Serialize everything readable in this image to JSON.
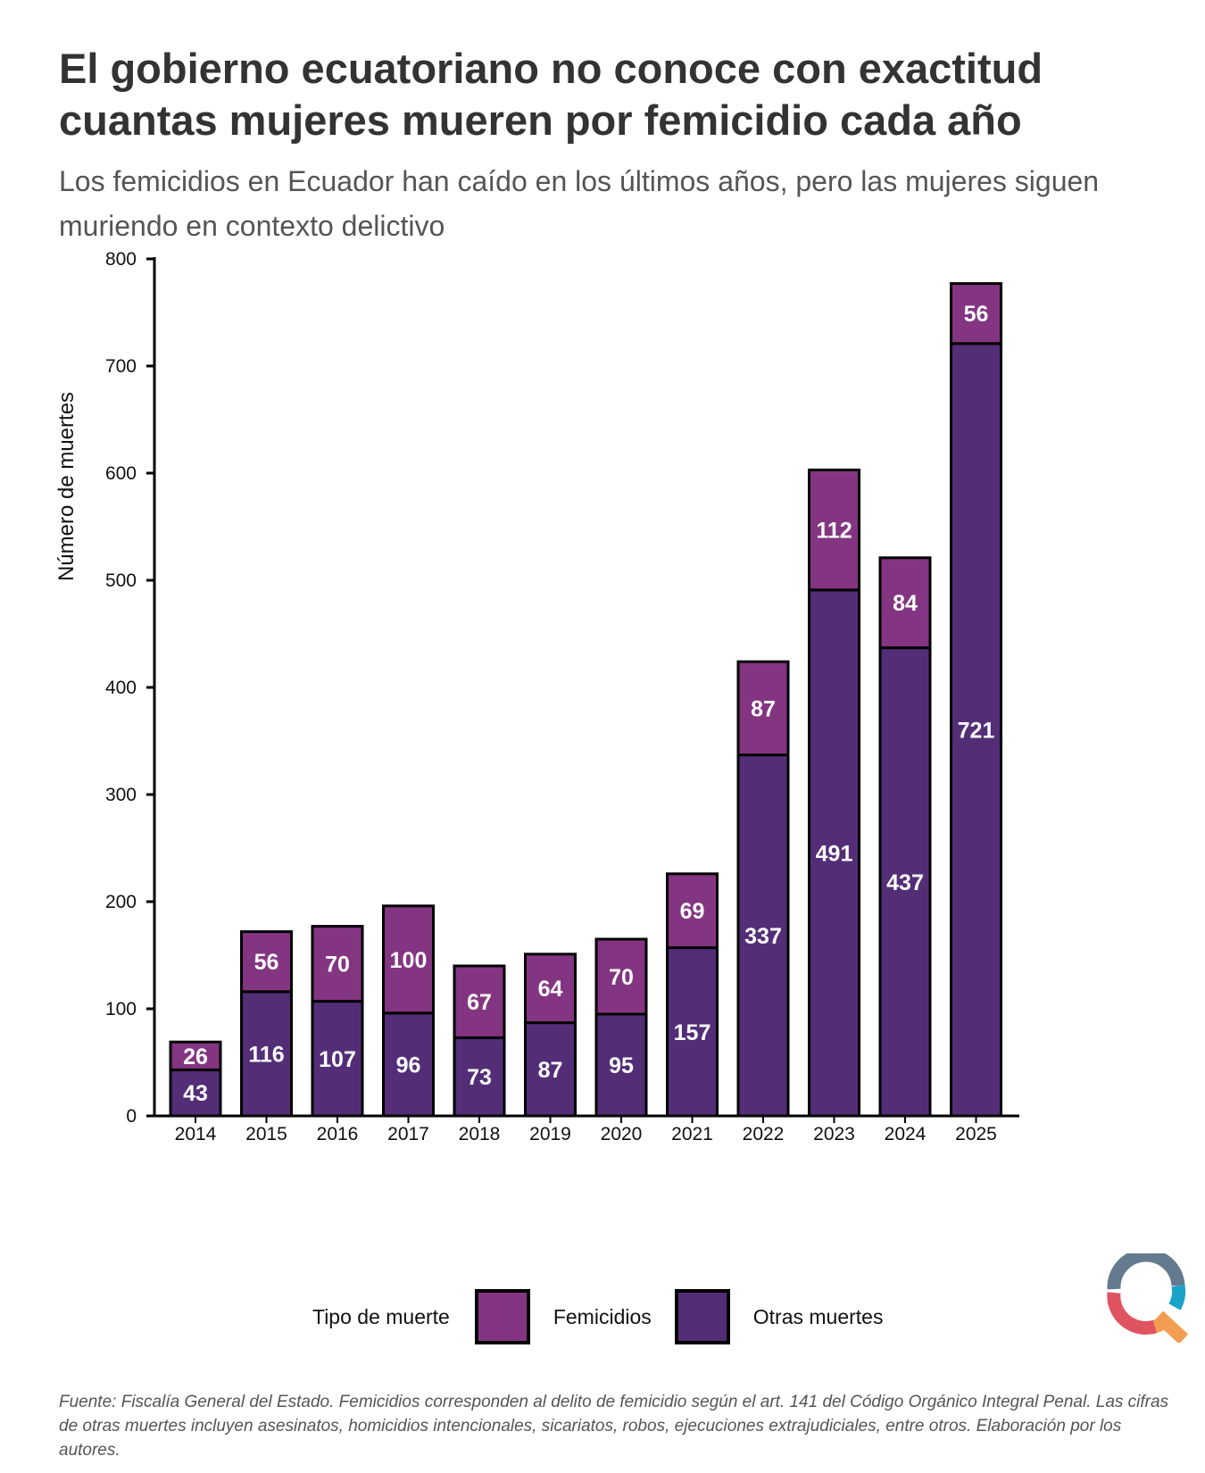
{
  "header": {
    "title": "El gobierno ecuatoriano no conoce con exactitud cuantas mujeres mueren por femicidio cada año",
    "subtitle": "Los femicidios en Ecuador han caído en los últimos años, pero las mujeres siguen muriendo en contexto delictivo"
  },
  "legend": {
    "title": "Tipo de muerte",
    "items": [
      {
        "label": "Femicidios",
        "color": "#843582"
      },
      {
        "label": "Otras muertes",
        "color": "#532e77"
      }
    ]
  },
  "footer": {
    "source": "Fuente: Fiscalía General del Estado. Femicidios corresponden al delito de femicidio según el art. 141 del Código Orgánico Integral Penal. Las cifras de otras muertes incluyen asesinatos, homicidios intencionales, sicariatos, robos, ejecuciones extrajudiciales, entre otros. Elaboración por los autores."
  },
  "chart_data": {
    "type": "bar",
    "stacked": true,
    "title": "El gobierno ecuatoriano no conoce con exactitud cuantas mujeres mueren por femicidio cada año",
    "subtitle": "Los femicidios en Ecuador han caído en los últimos años, pero las mujeres siguen muriendo en contexto delictivo",
    "xlabel": "",
    "ylabel": "Número de muertes",
    "ylim": [
      0,
      800
    ],
    "yticks": [
      0,
      100,
      200,
      300,
      400,
      500,
      600,
      700,
      800
    ],
    "grid": false,
    "legend_position": "bottom",
    "categories": [
      "2014",
      "2015",
      "2016",
      "2017",
      "2018",
      "2019",
      "2020",
      "2021",
      "2022",
      "2023",
      "2024",
      "2025"
    ],
    "series": [
      {
        "name": "Otras muertes",
        "color": "#532e77",
        "values": [
          43,
          116,
          107,
          96,
          73,
          87,
          95,
          157,
          337,
          491,
          437,
          721
        ]
      },
      {
        "name": "Femicidios",
        "color": "#843582",
        "values": [
          26,
          56,
          70,
          100,
          67,
          64,
          70,
          69,
          87,
          112,
          84,
          56
        ]
      }
    ]
  }
}
